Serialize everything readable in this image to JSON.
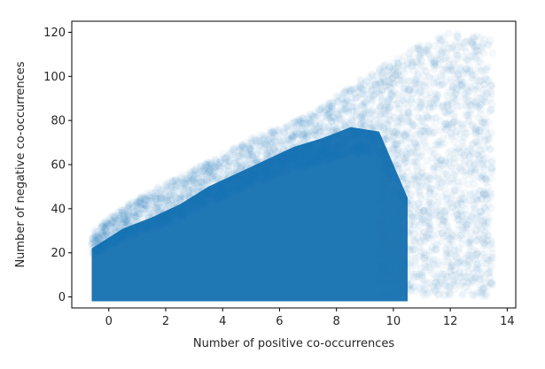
{
  "chart_data": {
    "type": "scatter",
    "title": "",
    "xlabel": "Number of positive co-occurrences",
    "ylabel": "Number of negative co-occurrences",
    "xlim": [
      -1.3,
      14.3
    ],
    "ylim": [
      -5,
      125
    ],
    "xticks": [
      0,
      2,
      4,
      6,
      8,
      10,
      12,
      14
    ],
    "yticks": [
      0,
      20,
      40,
      60,
      80,
      100,
      120
    ],
    "grid": false,
    "legend": "none",
    "marker_color": "#1f77b4",
    "marker_alpha": 0.02,
    "series": [
      {
        "dense_region": {
          "x_range": [
            -0.6,
            10.5
          ],
          "y_upper": [
            {
              "x": -0.6,
              "y": 22
            },
            {
              "x": 0.5,
              "y": 31
            },
            {
              "x": 1.5,
              "y": 36
            },
            {
              "x": 2.5,
              "y": 42
            },
            {
              "x": 3.5,
              "y": 50
            },
            {
              "x": 4.5,
              "y": 56
            },
            {
              "x": 5.5,
              "y": 62
            },
            {
              "x": 6.5,
              "y": 68
            },
            {
              "x": 7.5,
              "y": 72
            },
            {
              "x": 8.5,
              "y": 77
            },
            {
              "x": 9.5,
              "y": 75
            },
            {
              "x": 10.5,
              "y": 45
            }
          ]
        },
        "sparse_envelope": [
          {
            "x": -0.6,
            "y": 30
          },
          {
            "x": 1,
            "y": 45
          },
          {
            "x": 3,
            "y": 58
          },
          {
            "x": 5,
            "y": 72
          },
          {
            "x": 7,
            "y": 82
          },
          {
            "x": 9,
            "y": 100
          },
          {
            "x": 11,
            "y": 115
          },
          {
            "x": 12,
            "y": 120
          },
          {
            "x": 13.5,
            "y": 118
          }
        ]
      }
    ]
  }
}
